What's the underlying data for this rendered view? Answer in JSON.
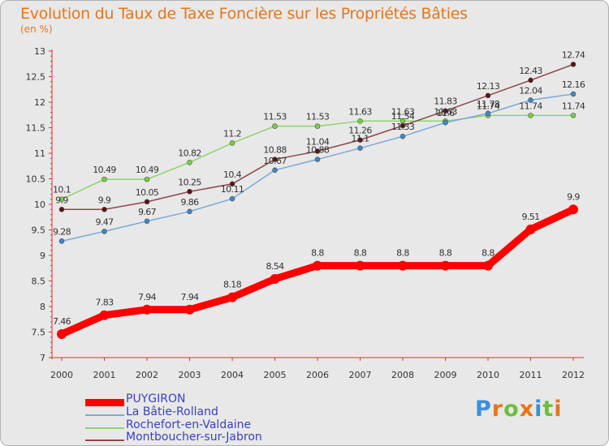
{
  "title": "Evolution du Taux de Taxe Foncière sur les Propriétés Bâties",
  "subtitle": "(en %)",
  "logo": {
    "letters": [
      "P",
      "r",
      "o",
      "x",
      "i",
      "t",
      "i"
    ],
    "colors": [
      "#3b8fd8",
      "#e8751a",
      "#6bbf3a",
      "#e8751a",
      "#3b8fd8",
      "#6bbf3a",
      "#e8751a"
    ]
  },
  "chart_data": {
    "type": "line",
    "title": "Evolution du Taux de Taxe Foncière sur les Propriétés Bâties",
    "ylabel": "(en %)",
    "xlabel": "",
    "x": [
      "2000",
      "2001",
      "2002",
      "2003",
      "2004",
      "2005",
      "2006",
      "2007",
      "2008",
      "2009",
      "2010",
      "2011",
      "2012"
    ],
    "ylim": [
      7,
      13
    ],
    "yticks": [
      "7",
      "7.5",
      "8",
      "8.5",
      "9",
      "9.5",
      "10",
      "10.5",
      "11",
      "11.5",
      "12",
      "12.5",
      "13"
    ],
    "grid": false,
    "legend_position": "bottom-left",
    "series": [
      {
        "name": "PUYGIRON",
        "color": "#ff0000",
        "marker": "#ff0000",
        "values": [
          7.46,
          7.83,
          7.94,
          7.94,
          8.18,
          8.54,
          8.8,
          8.8,
          8.8,
          8.8,
          8.8,
          9.51,
          9.9
        ],
        "labels": [
          "7.46",
          "7.83",
          "7.94",
          "7.94",
          "8.18",
          "8.54",
          "8.8",
          "8.8",
          "8.8",
          "8.8",
          "8.8",
          "9.51",
          "9.9"
        ]
      },
      {
        "name": "La Bâtie-Rolland",
        "color": "#7aa9d4",
        "marker": "#3d86c9",
        "values": [
          9.28,
          9.47,
          9.67,
          9.86,
          10.11,
          10.67,
          10.88,
          11.1,
          11.33,
          11.6,
          11.78,
          12.04,
          12.16
        ],
        "labels": [
          "9.28",
          "9.47",
          "9.67",
          "9.86",
          "10.11",
          "10.67",
          "10.88",
          "11.1",
          "11.33",
          "11.6",
          "11.78",
          "12.04",
          "12.16"
        ]
      },
      {
        "name": "Rochefort-en-Valdaine",
        "color": "#8fd46c",
        "marker": "#74d23e",
        "values": [
          10.1,
          10.49,
          10.49,
          10.82,
          11.2,
          11.53,
          11.53,
          11.63,
          11.63,
          11.63,
          11.74,
          11.74,
          11.74
        ],
        "labels": [
          "10.1",
          "10.49",
          "10.49",
          "10.82",
          "11.2",
          "11.53",
          "11.53",
          "11.63",
          "11.63",
          "11.63",
          "11.74",
          "11.74",
          "11.74"
        ]
      },
      {
        "name": "Montboucher-sur-Jabron",
        "color": "#8b4a4a",
        "marker": "#5a1414",
        "values": [
          9.9,
          9.9,
          10.05,
          10.25,
          10.4,
          10.88,
          11.04,
          11.26,
          11.54,
          11.83,
          12.13,
          12.43,
          12.74
        ],
        "labels": [
          "9.9",
          "9.9",
          "10.05",
          "10.25",
          "10.4",
          "10.88",
          "11.04",
          "11.26",
          "11.54",
          "11.83",
          "12.13",
          "12.43",
          "12.74"
        ]
      }
    ]
  }
}
